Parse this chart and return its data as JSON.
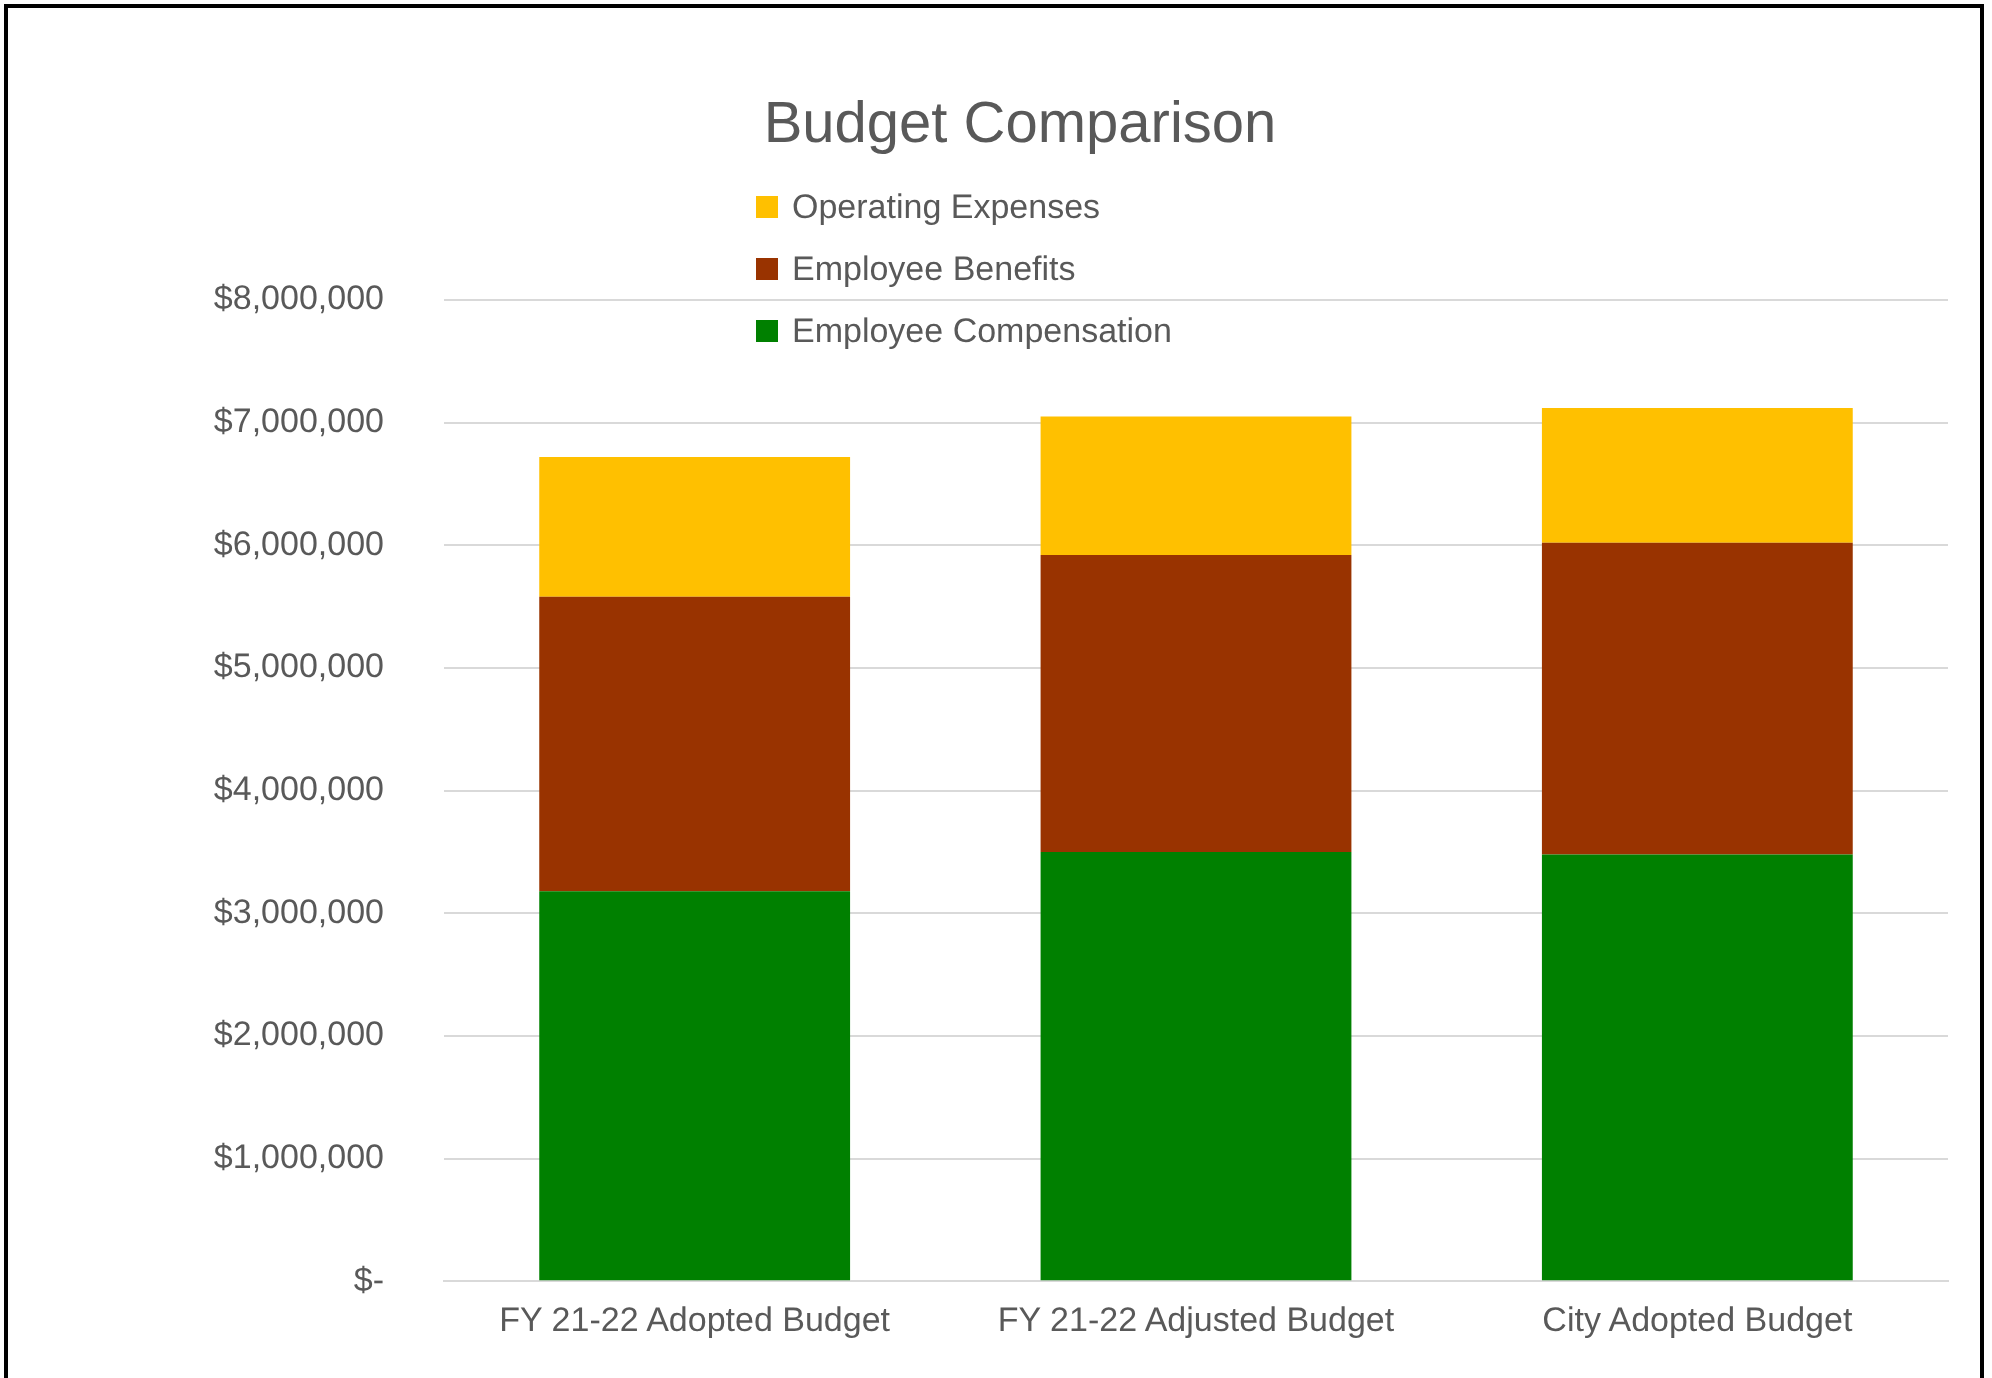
{
  "chart_data": {
    "type": "bar",
    "title": "Budget Comparison",
    "stacked": true,
    "legend": "top",
    "grid": "y",
    "categories": [
      "FY 21-22 Adopted Budget",
      "FY 21-22 Adjusted Budget",
      "City Adopted Budget"
    ],
    "series": [
      {
        "name": "Employee Compensation",
        "color": "#008000",
        "values": [
          3180000,
          3500000,
          3480000
        ]
      },
      {
        "name": "Employee Benefits",
        "color": "#993300",
        "values": [
          2400000,
          2420000,
          2540000
        ]
      },
      {
        "name": "Operating Expenses",
        "color": "#ffc000",
        "values": [
          1140000,
          1130000,
          1100000
        ]
      }
    ],
    "ylim": [
      0,
      8000000
    ],
    "yticks": [
      {
        "value": 0,
        "label": "$-"
      },
      {
        "value": 1000000,
        "label": "$1,000,000"
      },
      {
        "value": 2000000,
        "label": "$2,000,000"
      },
      {
        "value": 3000000,
        "label": "$3,000,000"
      },
      {
        "value": 4000000,
        "label": "$4,000,000"
      },
      {
        "value": 5000000,
        "label": "$5,000,000"
      },
      {
        "value": 6000000,
        "label": "$6,000,000"
      },
      {
        "value": 7000000,
        "label": "$7,000,000"
      },
      {
        "value": 8000000,
        "label": "$8,000,000"
      }
    ]
  }
}
